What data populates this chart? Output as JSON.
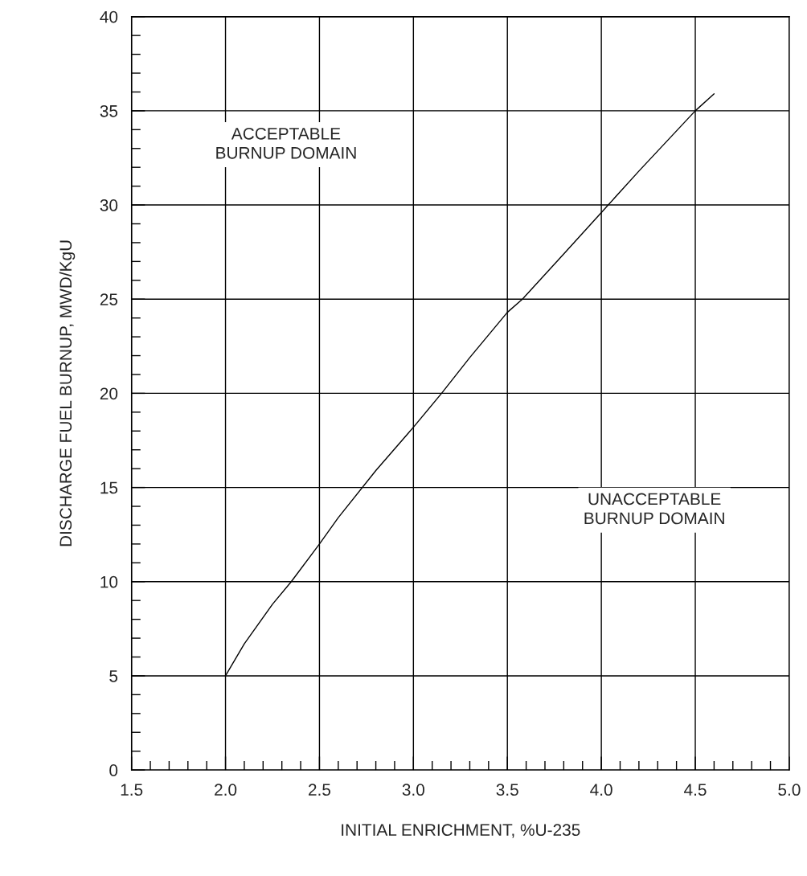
{
  "chart_data": {
    "type": "line",
    "xlabel": "INITIAL ENRICHMENT, %U-235",
    "ylabel": "DISCHARGE FUEL BURNUP, MWD/KgU",
    "x": [
      2.0,
      2.1,
      2.25,
      2.35,
      2.5,
      2.6,
      2.8,
      3.0,
      3.15,
      3.3,
      3.5,
      3.58,
      3.8,
      4.0,
      4.2,
      4.5,
      4.6
    ],
    "series": [
      {
        "color": "#000000",
        "values": [
          5.0,
          6.7,
          8.8,
          10.0,
          12.0,
          13.4,
          15.9,
          18.2,
          20.0,
          21.9,
          24.3,
          25.0,
          27.4,
          29.6,
          31.8,
          35.0,
          35.9
        ]
      }
    ],
    "xlim": [
      1.5,
      5.0
    ],
    "xticks": [
      {
        "value": 1.5,
        "label": "1.5"
      },
      {
        "value": 2.0,
        "label": "2.0"
      },
      {
        "value": 2.5,
        "label": "2.5"
      },
      {
        "value": 3.0,
        "label": "3.0"
      },
      {
        "value": 3.5,
        "label": "3.5"
      },
      {
        "value": 4.0,
        "label": "4.0"
      },
      {
        "value": 4.5,
        "label": "4.5"
      },
      {
        "value": 5.0,
        "label": "5.0"
      }
    ],
    "ylim": [
      0,
      40
    ],
    "yticks": [
      0,
      5,
      10,
      15,
      20,
      25,
      30,
      35,
      40
    ],
    "annotations": [
      "ACCEPTABLE\nBURNUP DOMAIN",
      "UNACCEPTABLE\nBURNUP DOMAIN"
    ],
    "grid": true,
    "marker": "none",
    "line_style": "solid",
    "legend": false
  }
}
